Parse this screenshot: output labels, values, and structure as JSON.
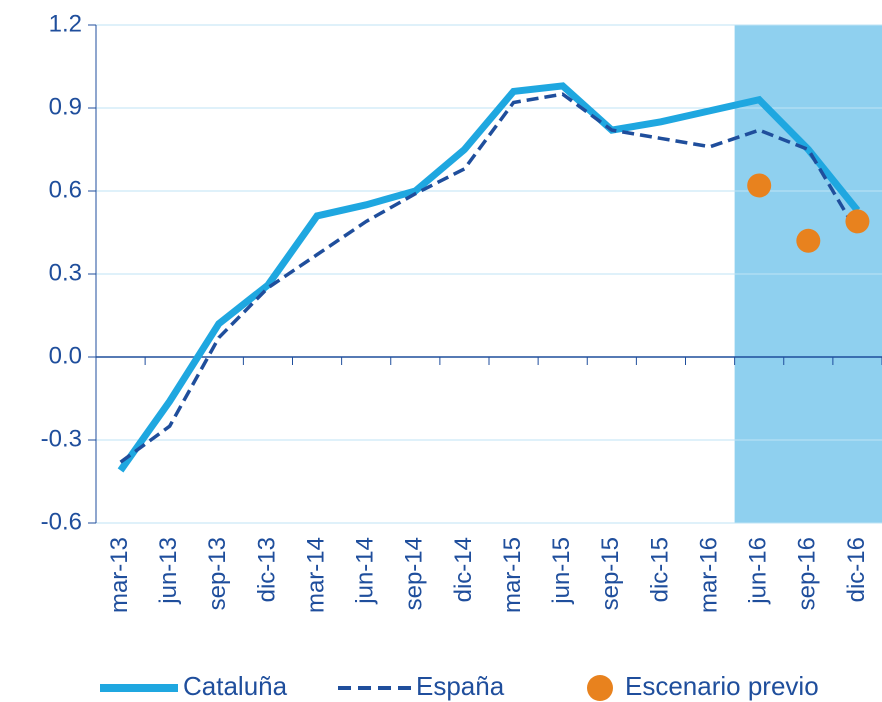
{
  "chart_data": {
    "type": "line",
    "categories": [
      "mar-13",
      "jun-13",
      "sep-13",
      "dic-13",
      "mar-14",
      "jun-14",
      "sep-14",
      "dic-14",
      "mar-15",
      "jun-15",
      "sep-15",
      "dic-15",
      "mar-16",
      "jun-16",
      "sep-16",
      "dic-16"
    ],
    "series": [
      {
        "name": "Cataluña",
        "color": "#1fa7e0",
        "style": "solid",
        "values": [
          -0.41,
          -0.16,
          0.12,
          0.26,
          0.51,
          0.55,
          0.6,
          0.75,
          0.96,
          0.98,
          0.82,
          0.85,
          0.89,
          0.93,
          0.75,
          0.53
        ]
      },
      {
        "name": "España",
        "color": "#1f4e9c",
        "style": "dashed",
        "values": [
          -0.38,
          -0.25,
          0.07,
          0.25,
          0.37,
          0.49,
          0.59,
          0.68,
          0.92,
          0.95,
          0.82,
          0.79,
          0.76,
          0.82,
          0.75,
          0.45
        ]
      },
      {
        "name": "Escenario previo",
        "color": "#e8821e",
        "style": "marker",
        "values": [
          null,
          null,
          null,
          null,
          null,
          null,
          null,
          null,
          null,
          null,
          null,
          null,
          null,
          0.62,
          0.42,
          0.49
        ]
      }
    ],
    "ylim": [
      -0.6,
      1.2
    ],
    "yticks": [
      -0.6,
      -0.3,
      {
        "value": 0,
        "label": "0.0"
      },
      0.3,
      0.6,
      0.9,
      1.2
    ],
    "grid": true,
    "shaded": {
      "from": 13,
      "color": "#8fd0ef"
    },
    "legend": "bottom"
  }
}
